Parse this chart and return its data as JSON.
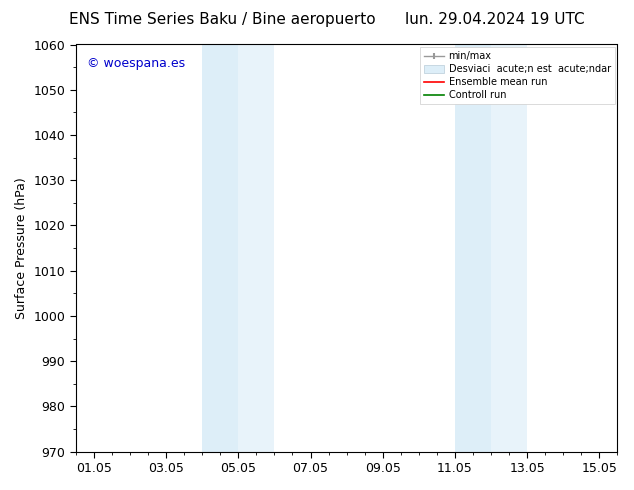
{
  "title_left": "ENS Time Series Baku / Bine aeropuerto",
  "title_right": "lun. 29.04.2024 19 UTC",
  "ylabel": "Surface Pressure (hPa)",
  "xlabel": "",
  "ylim": [
    970,
    1060
  ],
  "yticks": [
    970,
    980,
    990,
    1000,
    1010,
    1020,
    1030,
    1040,
    1050,
    1060
  ],
  "xtick_labels": [
    "01.05",
    "03.05",
    "05.05",
    "07.05",
    "09.05",
    "11.05",
    "13.05",
    "15.05"
  ],
  "xtick_positions": [
    0,
    2,
    4,
    6,
    8,
    10,
    12,
    14
  ],
  "xlim": [
    -0.5,
    14.5
  ],
  "background_color": "#ffffff",
  "plot_bg_color": "#ffffff",
  "shaded_regions": [
    {
      "x_start": 3.0,
      "x_end": 4.0,
      "color": "#ddeef8"
    },
    {
      "x_start": 4.0,
      "x_end": 5.0,
      "color": "#e8f3fa"
    },
    {
      "x_start": 10.0,
      "x_end": 11.0,
      "color": "#ddeef8"
    },
    {
      "x_start": 11.0,
      "x_end": 12.0,
      "color": "#e8f3fa"
    }
  ],
  "watermark_text": "© woespana.es",
  "watermark_color": "#0000cc",
  "legend_labels": [
    "min/max",
    "Desviaci  acute;n est  acute;ndar",
    "Ensemble mean run",
    "Controll run"
  ],
  "legend_colors_line": [
    "#aaaaaa",
    "#c8dce8",
    "#ff0000",
    "#008000"
  ],
  "tick_color": "#000000",
  "spine_color": "#000000",
  "title_fontsize": 11,
  "axis_label_fontsize": 9,
  "tick_fontsize": 9
}
